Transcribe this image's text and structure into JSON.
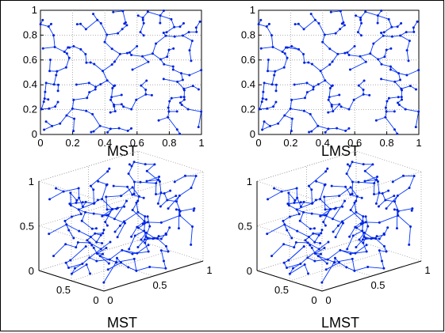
{
  "colors": {
    "edge": "#0033ff",
    "node": "#0022dd",
    "grid": "#9a9a9a",
    "axis": "#000000"
  },
  "chart_data": [
    {
      "type": "graph-2d",
      "title": "MST",
      "xlim": [
        0,
        1
      ],
      "ylim": [
        0,
        1
      ],
      "xticks": [
        "0",
        "0.2",
        "0.4",
        "0.6",
        "0.8",
        "1"
      ],
      "yticks": [
        "0",
        "0.2",
        "0.4",
        "0.6",
        "0.8",
        "1"
      ],
      "grid": true,
      "variant": "mst"
    },
    {
      "type": "graph-2d",
      "title": "LMST",
      "xlim": [
        0,
        1
      ],
      "ylim": [
        0,
        1
      ],
      "xticks": [
        "0",
        "0.2",
        "0.4",
        "0.6",
        "0.8",
        "1"
      ],
      "yticks": [
        "0",
        "0.2",
        "0.4",
        "0.6",
        "0.8",
        "1"
      ],
      "grid": true,
      "variant": "lmst"
    },
    {
      "type": "graph-3d",
      "title": "MST",
      "xlim": [
        0,
        1
      ],
      "ylim": [
        0,
        1
      ],
      "zlim": [
        0,
        1
      ],
      "zticks": [
        "0",
        "0.5",
        "1"
      ],
      "xticks": [
        "0",
        "0.5",
        "1"
      ],
      "yticks": [
        "0",
        "0.5"
      ],
      "grid": true,
      "variant": "mst"
    },
    {
      "type": "graph-3d",
      "title": "LMST",
      "xlim": [
        0,
        1
      ],
      "ylim": [
        0,
        1
      ],
      "zlim": [
        0,
        1
      ],
      "zticks": [
        "0",
        "0.5",
        "1"
      ],
      "xticks": [
        "0",
        "0.5",
        "1"
      ],
      "yticks": [
        "0",
        "0.5"
      ],
      "grid": true,
      "variant": "lmst"
    }
  ]
}
